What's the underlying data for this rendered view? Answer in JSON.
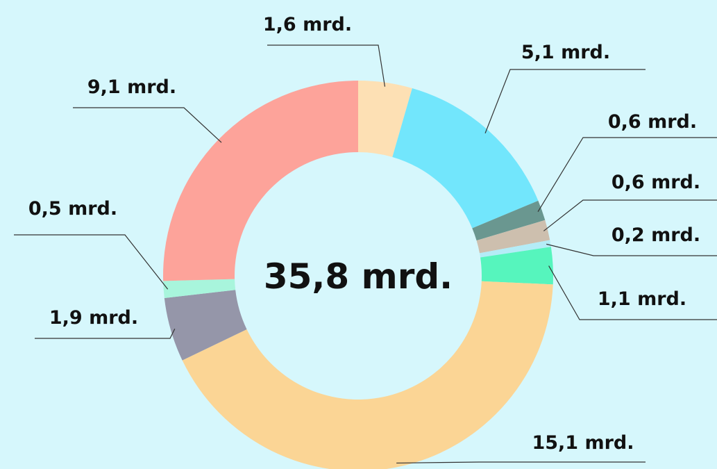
{
  "chart_data": {
    "type": "donut",
    "center_label": "35,8 mrd.",
    "values": [
      1.6,
      5.1,
      0.6,
      0.6,
      0.2,
      1.1,
      15.1,
      1.9,
      0.5,
      9.1
    ],
    "value_labels": [
      "1,6 mrd.",
      "5,1 mrd.",
      "0,6 mrd.",
      "0,6 mrd.",
      "0,2 mrd.",
      "1,1 mrd.",
      "15,1 mrd.",
      "1,9 mrd.",
      "0,5 mrd.",
      "9,1 mrd."
    ],
    "colors": [
      "#fde0b4",
      "#72e6fc",
      "#6a9790",
      "#cdbfae",
      "#b4ecf7",
      "#56f5bd",
      "#fbd595",
      "#9596a9",
      "#a8f5dc",
      "#fda39a"
    ]
  }
}
